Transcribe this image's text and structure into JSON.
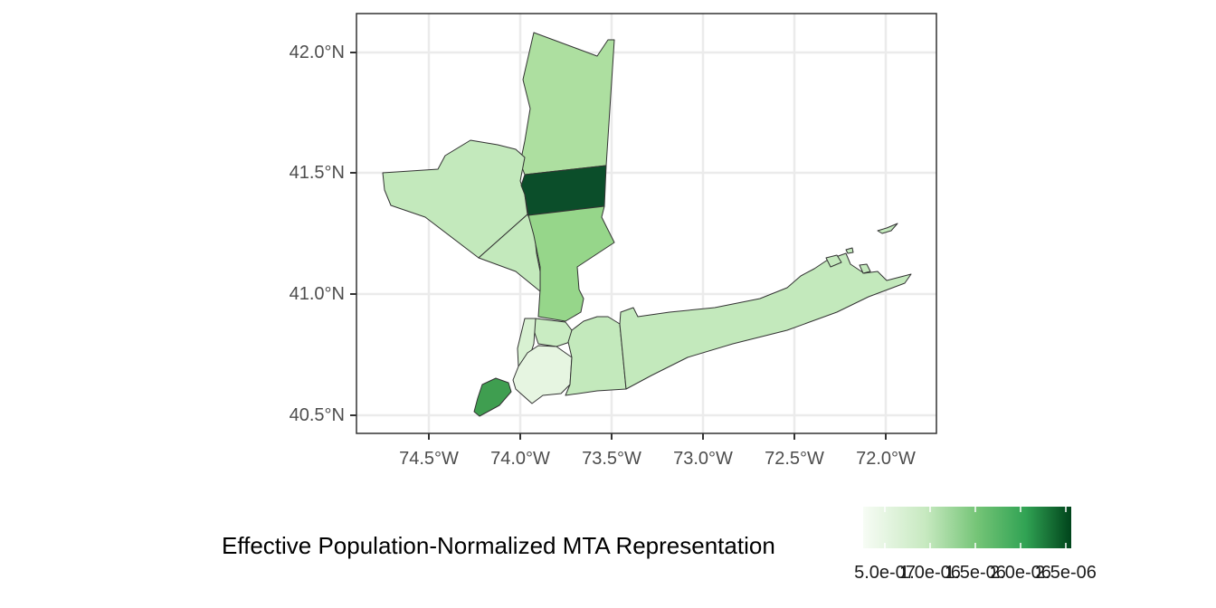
{
  "map": {
    "x_ticks": [
      "74.5°W",
      "74.0°W",
      "73.5°W",
      "73.0°W",
      "72.5°W",
      "72.0°W"
    ],
    "y_ticks": [
      "40.5°N",
      "41.0°N",
      "41.5°N",
      "42.0°N"
    ]
  },
  "legend": {
    "title": "Effective Population-Normalized MTA Representation",
    "labels": [
      "5.0e-07",
      "1.0e-06",
      "1.5e-06",
      "2.0e-06",
      "2.5e-06"
    ],
    "colors": [
      "#f7fcf5",
      "#c7e9c0",
      "#a1d99b",
      "#74c476",
      "#31a354",
      "#006d2c",
      "#00441b"
    ]
  },
  "colors": {
    "panel_border": "#333333",
    "grid": "#ebebeb",
    "county_stroke": "#333333"
  }
}
